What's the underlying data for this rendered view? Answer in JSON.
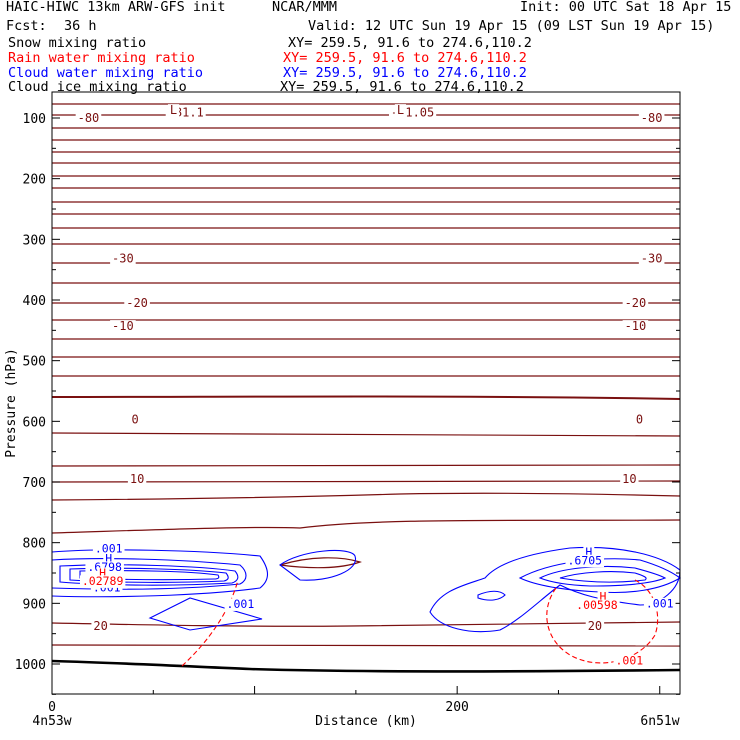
{
  "header": {
    "model": "HAIC-HIWC 13km ARW-GFS init",
    "org": "NCAR/MMM",
    "init": "Init: 00 UTC Sat 18 Apr 15",
    "fcst_label": "Fcst:",
    "fcst_value": "36 h",
    "valid": "Valid: 12 UTC Sun 19 Apr 15 (09 LST Sun 19 Apr 15)"
  },
  "fields": [
    {
      "name": "Snow mixing ratio",
      "xy": "XY= 259.5, 91.6 to 274.6,110.2",
      "color": "#000000"
    },
    {
      "name": "Rain water mixing ratio",
      "xy": "XY= 259.5, 91.6 to 274.6,110.2",
      "color": "#ff0000"
    },
    {
      "name": "Cloud water mixing ratio",
      "xy": "XY= 259.5, 91.6 to 274.6,110.2",
      "color": "#0000ff"
    },
    {
      "name": "Cloud ice mixing ratio",
      "xy": "XY= 259.5, 91.6 to 274.6,110.2",
      "color": "#000000"
    }
  ],
  "chart_data": {
    "type": "cross-section contour",
    "xlabel": "Distance (km)",
    "ylabel": "Pressure (hPa)",
    "xlim": [
      0,
      310
    ],
    "ylim": [
      1050,
      60
    ],
    "x_ticks": [
      0,
      200
    ],
    "y_ticks": [
      100,
      200,
      300,
      400,
      500,
      600,
      700,
      800,
      900,
      1000
    ],
    "x_endpoints": [
      "4n53w",
      "6n51w"
    ],
    "temperature_isotherms_color": "#7a1010",
    "temperature_labels": [
      {
        "text": "-80",
        "x": 18,
        "p": 100
      },
      {
        "text": "-80",
        "x": 296,
        "p": 100
      },
      {
        "text": "-81.1",
        "x": 66,
        "p": 91
      },
      {
        "text": "-81.05",
        "x": 178,
        "p": 91
      },
      {
        "text": "-30",
        "x": 35,
        "p": 332
      },
      {
        "text": "-30",
        "x": 296,
        "p": 332
      },
      {
        "text": "-20",
        "x": 42,
        "p": 405
      },
      {
        "text": "-20",
        "x": 288,
        "p": 405
      },
      {
        "text": "-10",
        "x": 35,
        "p": 443
      },
      {
        "text": "-10",
        "x": 288,
        "p": 443
      },
      {
        "text": "0",
        "x": 41,
        "p": 597
      },
      {
        "text": "0",
        "x": 290,
        "p": 597
      },
      {
        "text": "10",
        "x": 42,
        "p": 695
      },
      {
        "text": "10",
        "x": 285,
        "p": 695
      },
      {
        "text": "20",
        "x": 24,
        "p": 937
      },
      {
        "text": "20",
        "x": 268,
        "p": 937
      }
    ],
    "temperature_extrema": [
      {
        "text": "L",
        "x": 60,
        "p": 87
      },
      {
        "text": "L",
        "x": 172,
        "p": 87
      }
    ],
    "cloud_water_labels": [
      {
        "text": ".001",
        "x": 28,
        "p": 810
      },
      {
        "text": "H",
        "x": 28,
        "p": 826
      },
      {
        "text": ".6798",
        "x": 26,
        "p": 840
      },
      {
        "text": ".001",
        "x": 27,
        "p": 874
      },
      {
        "text": ".001",
        "x": 93,
        "p": 901
      },
      {
        "text": "H",
        "x": 265,
        "p": 815
      },
      {
        "text": ".6705",
        "x": 263,
        "p": 829
      },
      {
        "text": ".001",
        "x": 300,
        "p": 900
      }
    ],
    "rain_water_labels": [
      {
        "text": "H",
        "x": 25,
        "p": 850
      },
      {
        "text": ".02789",
        "x": 25,
        "p": 863
      },
      {
        "text": "H",
        "x": 272,
        "p": 889
      },
      {
        "text": ".00598",
        "x": 269,
        "p": 903
      },
      {
        "text": ".001",
        "x": 285,
        "p": 994
      }
    ],
    "grid": false
  }
}
